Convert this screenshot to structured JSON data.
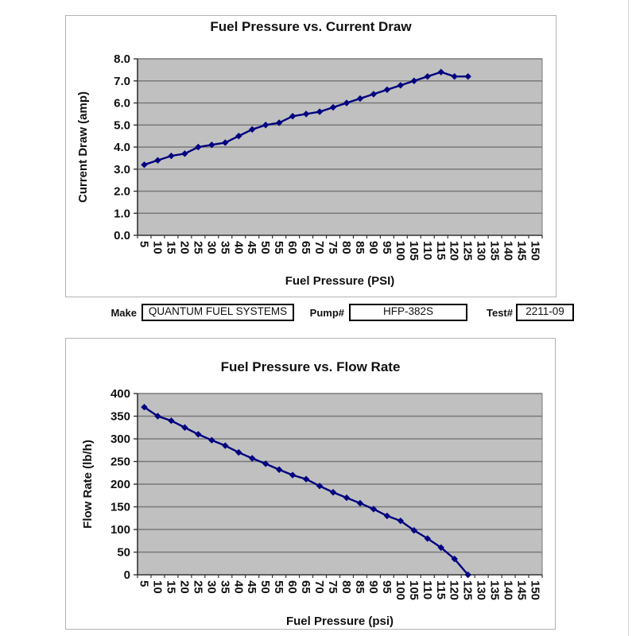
{
  "chart_data": [
    {
      "type": "line",
      "title": "Fuel Pressure vs. Current Draw",
      "xlabel": "Fuel Pressure (PSI)",
      "ylabel": "Current Draw (amp)",
      "categories": [
        5,
        10,
        15,
        20,
        25,
        30,
        35,
        40,
        45,
        50,
        55,
        60,
        65,
        70,
        75,
        80,
        85,
        90,
        95,
        100,
        105,
        110,
        115,
        120,
        125,
        130,
        135,
        140,
        145,
        150
      ],
      "x": [
        5,
        10,
        15,
        20,
        25,
        30,
        35,
        40,
        45,
        50,
        55,
        60,
        65,
        70,
        75,
        80,
        85,
        90,
        95,
        100,
        105,
        110,
        115,
        120,
        125
      ],
      "values": [
        3.2,
        3.4,
        3.6,
        3.7,
        4.0,
        4.1,
        4.2,
        4.5,
        4.8,
        5.0,
        5.1,
        5.4,
        5.5,
        5.6,
        5.8,
        6.0,
        6.2,
        6.4,
        6.6,
        6.8,
        7.0,
        7.2,
        7.4,
        7.2,
        7.2
      ],
      "ylim": [
        0,
        8
      ],
      "ytick_labels": [
        "0.0",
        "1.0",
        "2.0",
        "3.0",
        "4.0",
        "5.0",
        "6.0",
        "7.0",
        "8.0"
      ],
      "grid": true,
      "legend": "none",
      "line_color": "#000080",
      "marker": "diamond",
      "plot_bg": "#c0c0c0",
      "grid_color": "#787878"
    },
    {
      "type": "line",
      "title": "Fuel Pressure vs. Flow Rate",
      "xlabel": "Fuel Pressure (psi)",
      "ylabel": "Flow Rate (lb/h)",
      "categories": [
        5,
        10,
        15,
        20,
        25,
        30,
        35,
        40,
        45,
        50,
        55,
        60,
        65,
        70,
        75,
        80,
        85,
        90,
        95,
        100,
        105,
        110,
        115,
        120,
        125,
        130,
        135,
        140,
        145,
        150
      ],
      "x": [
        5,
        10,
        15,
        20,
        25,
        30,
        35,
        40,
        45,
        50,
        55,
        60,
        65,
        70,
        75,
        80,
        85,
        90,
        95,
        100,
        105,
        110,
        115,
        120,
        125
      ],
      "values": [
        370,
        350,
        340,
        325,
        310,
        297,
        285,
        270,
        257,
        245,
        232,
        220,
        211,
        196,
        182,
        170,
        158,
        145,
        130,
        119,
        98,
        80,
        60,
        35,
        0
      ],
      "ylim": [
        0,
        400
      ],
      "ytick_labels": [
        "0",
        "50",
        "100",
        "150",
        "200",
        "250",
        "300",
        "350",
        "400"
      ],
      "grid": true,
      "legend": "none",
      "line_color": "#000080",
      "marker": "diamond",
      "plot_bg": "#c0c0c0",
      "grid_color": "#787878"
    }
  ],
  "form": {
    "make_label": "Make",
    "make_value": "QUANTUM FUEL SYSTEMS",
    "pump_label": "Pump#",
    "pump_value": "HFP-382S",
    "test_label": "Test#",
    "test_value": "2211-09"
  }
}
